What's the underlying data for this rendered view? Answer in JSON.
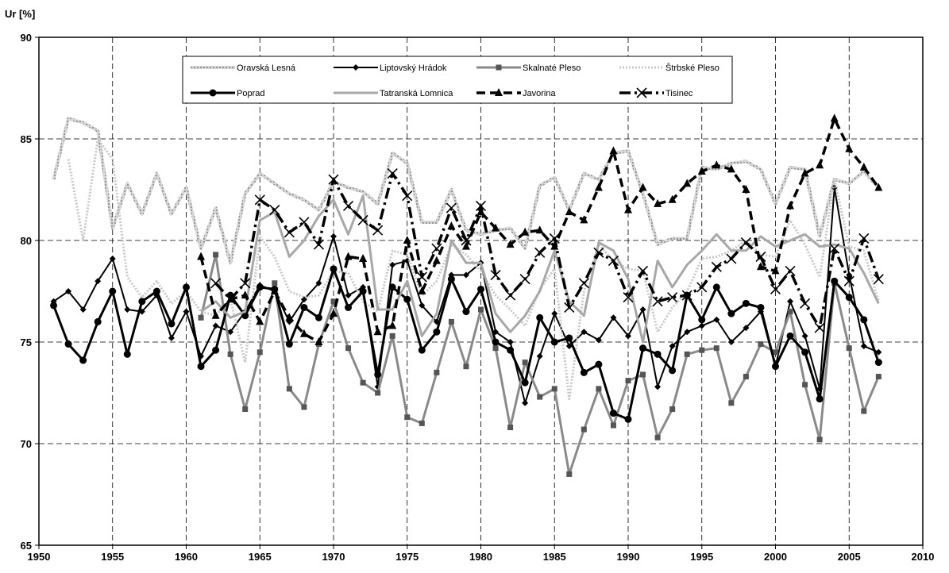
{
  "chart_data": {
    "type": "line",
    "title": "",
    "xlabel": "",
    "ylabel": "Ur [%]",
    "xlim": [
      1950,
      2010
    ],
    "ylim": [
      65,
      90
    ],
    "xticks": [
      1950,
      1955,
      1960,
      1965,
      1970,
      1975,
      1980,
      1985,
      1990,
      1995,
      2000,
      2005,
      2010
    ],
    "yticks": [
      65,
      70,
      75,
      80,
      85,
      90
    ],
    "grid": true,
    "legend_position": "top-center",
    "series": [
      {
        "name": "Oravská Lesná",
        "color": "#b8b8b8",
        "style": "textured",
        "marker": "none",
        "x": [
          1951,
          1952,
          1953,
          1954,
          1955,
          1956,
          1957,
          1958,
          1959,
          1960,
          1961,
          1962,
          1963,
          1964,
          1965,
          1966,
          1967,
          1968,
          1969,
          1970,
          1971,
          1972,
          1973,
          1974,
          1975,
          1976,
          1977,
          1978,
          1979,
          1980,
          1981,
          1982,
          1983,
          1984,
          1985,
          1986,
          1987,
          1988,
          1989,
          1990,
          1991,
          1992,
          1993,
          1994,
          1995,
          1996,
          1997,
          1998,
          1999,
          2000,
          2001,
          2002,
          2003,
          2004,
          2005,
          2006,
          2007
        ],
        "values": [
          83,
          86,
          85.8,
          85.4,
          80.6,
          82.8,
          81.3,
          83.3,
          81.3,
          82.6,
          79.6,
          81.6,
          78.9,
          82.3,
          83.3,
          82.8,
          82.3,
          82,
          81.5,
          82.9,
          82.6,
          82.4,
          81.8,
          84.3,
          83.8,
          80.9,
          80.9,
          82.5,
          80.5,
          80.3,
          80.5,
          80.6,
          79.6,
          82.7,
          83.1,
          81.5,
          83.3,
          83,
          84.3,
          84.4,
          82.3,
          79.8,
          80.1,
          80.1,
          83.6,
          83.5,
          83.8,
          83.9,
          83.5,
          81.8,
          83.6,
          83.5,
          80.2,
          83,
          82.8,
          83.4,
          82.6
        ]
      },
      {
        "name": "Liptovský Hrádok",
        "color": "#000000",
        "style": "solid",
        "marker": "diamond",
        "x": [
          1951,
          1952,
          1953,
          1954,
          1955,
          1956,
          1957,
          1958,
          1959,
          1960,
          1961,
          1962,
          1963,
          1964,
          1965,
          1966,
          1967,
          1968,
          1969,
          1970,
          1971,
          1972,
          1973,
          1974,
          1975,
          1976,
          1977,
          1978,
          1979,
          1980,
          1981,
          1982,
          1983,
          1984,
          1985,
          1986,
          1987,
          1988,
          1989,
          1990,
          1991,
          1992,
          1993,
          1994,
          1995,
          1996,
          1997,
          1998,
          1999,
          2000,
          2001,
          2002,
          2003,
          2004,
          2005,
          2006,
          2007
        ],
        "values": [
          77,
          77.5,
          76.6,
          78,
          79.1,
          76.6,
          76.5,
          77.3,
          75.2,
          76.5,
          74.3,
          75.8,
          75.5,
          76.5,
          77.8,
          77.5,
          76,
          77.1,
          77.9,
          80.2,
          77.3,
          77.7,
          72.8,
          78.8,
          79,
          76.8,
          76,
          78.3,
          78.3,
          78.9,
          75.5,
          75,
          72,
          74.3,
          76.4,
          74.8,
          75.5,
          75.1,
          76.2,
          75.3,
          76.6,
          72.8,
          74.8,
          75.5,
          75.8,
          76.1,
          75,
          75.7,
          76.5,
          73.8,
          77,
          75.3,
          72.7,
          82.6,
          78.3,
          74.8,
          74.5
        ]
      },
      {
        "name": "Skalnaté Pleso",
        "color": "#8a8a8a",
        "style": "solid",
        "marker": "square",
        "x": [
          1961,
          1962,
          1963,
          1964,
          1965,
          1966,
          1967,
          1968,
          1969,
          1970,
          1971,
          1972,
          1973,
          1974,
          1975,
          1976,
          1977,
          1978,
          1979,
          1980,
          1981,
          1982,
          1983,
          1984,
          1985,
          1986,
          1987,
          1988,
          1989,
          1990,
          1991,
          1992,
          1993,
          1994,
          1995,
          1996,
          1997,
          1998,
          1999,
          2000,
          2001,
          2002,
          2003,
          2004,
          2005,
          2006,
          2007
        ],
        "values": [
          76.2,
          79.3,
          74.4,
          71.7,
          74.5,
          77.9,
          72.7,
          71.8,
          74.9,
          77,
          74.7,
          73,
          72.5,
          75.3,
          71.3,
          71,
          73.5,
          76,
          73.8,
          76.6,
          74.7,
          70.8,
          74,
          72.3,
          72.7,
          68.5,
          70.7,
          72.7,
          70.9,
          73.1,
          73.4,
          70.3,
          71.7,
          74.4,
          74.6,
          74.7,
          72,
          73.3,
          74.9,
          74.5,
          76.5,
          72.9,
          70.2,
          77.9,
          74.7,
          71.6,
          73.3
        ]
      },
      {
        "name": "Štrbské Pleso",
        "color": "#c8c8c8",
        "style": "dotted",
        "marker": "none",
        "x": [
          1952,
          1953,
          1954,
          1955,
          1956,
          1957,
          1958,
          1959,
          1960,
          1961,
          1962,
          1963,
          1964,
          1965,
          1966,
          1967,
          1968,
          1969,
          1970,
          1971,
          1972,
          1973,
          1974,
          1975,
          1976,
          1977,
          1978,
          1979,
          1980,
          1981,
          1982,
          1983,
          1984,
          1985,
          1986,
          1987,
          1988,
          1989,
          1990,
          1991,
          1992,
          1993,
          1994,
          1995,
          1996,
          1997,
          1998,
          1999,
          2000,
          2001,
          2002,
          2003,
          2004,
          2005,
          2006,
          2007
        ],
        "values": [
          84,
          80,
          85,
          84,
          78.2,
          77.2,
          78,
          76.9,
          77.5,
          76.5,
          76.3,
          77.1,
          74,
          80.2,
          79.2,
          77.5,
          77.2,
          77.3,
          78.5,
          78.4,
          77,
          76.5,
          79.5,
          79.3,
          77.3,
          78,
          79.8,
          79.3,
          78.5,
          77.3,
          76.6,
          75.8,
          77.6,
          78.6,
          72.2,
          77.5,
          79.8,
          79,
          78.6,
          78.5,
          75.5,
          76.7,
          77.5,
          79.1,
          79.2,
          79.5,
          80,
          79.3,
          79.2,
          81,
          79.8,
          78.2,
          83,
          79.7,
          79.5,
          77
        ]
      },
      {
        "name": "Poprad",
        "color": "#000000",
        "style": "solid-thick",
        "marker": "circle",
        "x": [
          1951,
          1952,
          1953,
          1954,
          1955,
          1956,
          1957,
          1958,
          1959,
          1960,
          1961,
          1962,
          1963,
          1964,
          1965,
          1966,
          1967,
          1968,
          1969,
          1970,
          1971,
          1972,
          1973,
          1974,
          1975,
          1976,
          1977,
          1978,
          1979,
          1980,
          1981,
          1982,
          1983,
          1984,
          1985,
          1986,
          1987,
          1988,
          1989,
          1990,
          1991,
          1992,
          1993,
          1994,
          1995,
          1996,
          1997,
          1998,
          1999,
          2000,
          2001,
          2002,
          2003,
          2004,
          2005,
          2006,
          2007
        ],
        "values": [
          76.8,
          74.9,
          74.1,
          76,
          77.5,
          74.4,
          77,
          77.5,
          75.9,
          77.7,
          73.8,
          74.6,
          77.3,
          76.3,
          77.7,
          77.6,
          74.9,
          76.7,
          76.2,
          78.6,
          76.7,
          77.5,
          73.4,
          77.7,
          77.1,
          74.6,
          75.5,
          78.1,
          76.5,
          77.6,
          75,
          74.6,
          73,
          76.2,
          75,
          75.2,
          73.5,
          73.9,
          71.5,
          71.2,
          74.7,
          74.4,
          73.6,
          77.3,
          76.1,
          77.7,
          76.4,
          76.9,
          76.7,
          73.8,
          75.3,
          74.5,
          72.2,
          78,
          77.2,
          76.1,
          74
        ]
      },
      {
        "name": "Tatranská Lomnica",
        "color": "#a8a8a8",
        "style": "solid",
        "marker": "none",
        "x": [
          1961,
          1962,
          1963,
          1964,
          1965,
          1966,
          1967,
          1968,
          1969,
          1970,
          1971,
          1972,
          1973,
          1974,
          1975,
          1976,
          1977,
          1978,
          1979,
          1980,
          1981,
          1982,
          1983,
          1984,
          1985,
          1986,
          1987,
          1988,
          1989,
          1990,
          1991,
          1992,
          1993,
          1994,
          1995,
          1996,
          1997,
          1998,
          1999,
          2000,
          2001,
          2002,
          2003,
          2004,
          2005,
          2006,
          2007
        ],
        "values": [
          76.5,
          77,
          76.2,
          76.5,
          81,
          81.4,
          79.2,
          80,
          81.2,
          82,
          80.3,
          82.2,
          76.6,
          76.6,
          78,
          75.3,
          76.4,
          80,
          78.9,
          78.9,
          76.4,
          75.5,
          76.3,
          77.5,
          79.5,
          77,
          76.3,
          79.9,
          79.5,
          78.1,
          75,
          79,
          77.7,
          78.8,
          79.5,
          80.3,
          79.5,
          79.5,
          80.2,
          79.7,
          80,
          80.3,
          79.7,
          79.8,
          79.6,
          78.4,
          76.9
        ]
      },
      {
        "name": "Javorina",
        "color": "#000000",
        "style": "dashed",
        "marker": "triangle",
        "x": [
          1961,
          1962,
          1963,
          1964,
          1965,
          1966,
          1967,
          1968,
          1969,
          1970,
          1971,
          1972,
          1973,
          1974,
          1975,
          1976,
          1977,
          1978,
          1979,
          1980,
          1981,
          1982,
          1983,
          1984,
          1985,
          1986,
          1987,
          1988,
          1989,
          1990,
          1991,
          1992,
          1993,
          1994,
          1995,
          1996,
          1997,
          1998,
          1999,
          2000,
          2001,
          2002,
          2003,
          2004,
          2005,
          2006,
          2007
        ],
        "values": [
          79.2,
          76.3,
          77.1,
          77.3,
          76,
          77.5,
          76.2,
          75.4,
          75,
          76.4,
          79.2,
          79.1,
          75.5,
          75.8,
          80,
          77.5,
          79,
          80.7,
          79.7,
          81.4,
          80.6,
          79.8,
          80.4,
          80.5,
          79.7,
          81.4,
          81,
          82.6,
          84.4,
          81.5,
          82.6,
          81.8,
          82,
          82.8,
          83.4,
          83.7,
          83.5,
          82.5,
          78.7,
          78.5,
          81.7,
          83.3,
          83.7,
          86,
          84.5,
          83.6,
          82.6
        ]
      },
      {
        "name": "Tisinec",
        "color": "#000000",
        "style": "dashdot",
        "marker": "x",
        "x": [
          1962,
          1963,
          1964,
          1965,
          1966,
          1967,
          1968,
          1969,
          1970,
          1971,
          1972,
          1973,
          1974,
          1975,
          1976,
          1977,
          1978,
          1979,
          1980,
          1981,
          1982,
          1983,
          1984,
          1985,
          1986,
          1987,
          1988,
          1989,
          1990,
          1991,
          1992,
          1993,
          1994,
          1995,
          1996,
          1997,
          1998,
          1999,
          2000,
          2001,
          2002,
          2003,
          2004,
          2005,
          2006,
          2007
        ],
        "values": [
          77.9,
          77.1,
          77.9,
          82,
          81.5,
          80.4,
          80.9,
          79.8,
          83,
          81.7,
          81,
          80.5,
          83.3,
          82.2,
          78.2,
          79.6,
          81.6,
          80,
          81.7,
          78.3,
          77.3,
          78.1,
          79.4,
          80.1,
          76.7,
          77.9,
          79.4,
          79,
          77.2,
          78.5,
          77,
          77.2,
          77.3,
          77.7,
          78.7,
          79.1,
          79.9,
          79.2,
          77.6,
          78.5,
          76.9,
          75.7,
          79.6,
          78,
          80.1,
          78.1
        ]
      }
    ]
  }
}
